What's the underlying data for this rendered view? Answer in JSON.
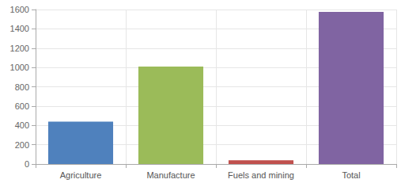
{
  "chart_data": {
    "type": "bar",
    "categories": [
      "Agriculture",
      "Manufacture",
      "Fuels and mining",
      "Total"
    ],
    "values": [
      440,
      1010,
      40,
      1575
    ],
    "colors": [
      "#4f81bd",
      "#9bbb59",
      "#c0504d",
      "#8064a2"
    ],
    "ylim": [
      0,
      1600
    ],
    "yticks": [
      0,
      200,
      400,
      600,
      800,
      1000,
      1200,
      1400,
      1600
    ],
    "grid": true
  }
}
